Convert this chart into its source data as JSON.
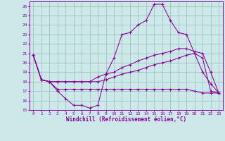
{
  "xlabel": "Windchill (Refroidissement éolien,°C)",
  "xlim": [
    -0.5,
    23.5
  ],
  "ylim": [
    15,
    26.5
  ],
  "yticks": [
    15,
    16,
    17,
    18,
    19,
    20,
    21,
    22,
    23,
    24,
    25,
    26
  ],
  "xticks": [
    0,
    1,
    2,
    3,
    4,
    5,
    6,
    7,
    8,
    9,
    10,
    11,
    12,
    13,
    14,
    15,
    16,
    17,
    18,
    19,
    20,
    21,
    22,
    23
  ],
  "bg_color": "#cce8e8",
  "line_color": "#880099",
  "grid_color": "#99bbbb",
  "line1": [
    20.8,
    18.2,
    18.0,
    17.0,
    16.2,
    15.5,
    15.5,
    15.2,
    15.5,
    18.8,
    20.5,
    23.0,
    23.2,
    24.0,
    24.5,
    26.2,
    26.2,
    24.5,
    23.2,
    23.0,
    21.0,
    19.0,
    17.8,
    16.8
  ],
  "line2": [
    20.8,
    18.2,
    18.0,
    18.0,
    18.0,
    18.0,
    18.0,
    18.0,
    18.5,
    18.8,
    19.0,
    19.5,
    19.8,
    20.2,
    20.5,
    20.8,
    21.0,
    21.2,
    21.5,
    21.5,
    21.2,
    21.0,
    19.0,
    16.8
  ],
  "line3": [
    20.8,
    18.2,
    18.0,
    18.0,
    18.0,
    18.0,
    18.0,
    18.0,
    18.0,
    18.2,
    18.5,
    18.8,
    19.0,
    19.2,
    19.5,
    19.8,
    20.0,
    20.2,
    20.5,
    20.8,
    21.0,
    20.5,
    17.0,
    16.8
  ],
  "line4": [
    20.8,
    18.2,
    18.0,
    17.2,
    17.2,
    17.2,
    17.2,
    17.2,
    17.2,
    17.2,
    17.2,
    17.2,
    17.2,
    17.2,
    17.2,
    17.2,
    17.2,
    17.2,
    17.2,
    17.2,
    17.0,
    16.8,
    16.8,
    16.8
  ]
}
